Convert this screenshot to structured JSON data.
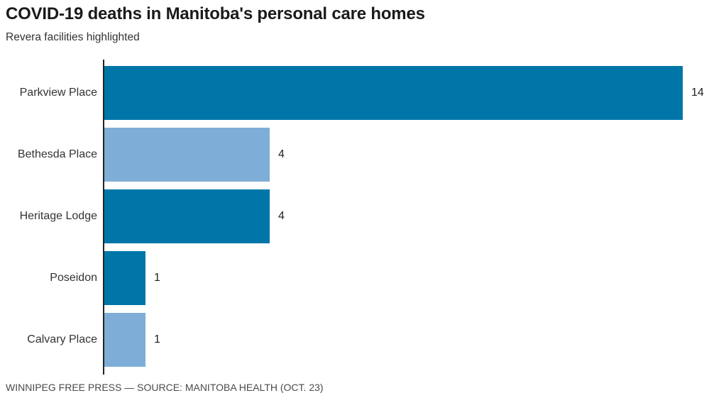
{
  "header": {
    "title": "COVID-19 deaths in Manitoba's personal care homes",
    "subtitle": "Revera facilities highlighted"
  },
  "footer": {
    "source_line": "WINNIPEG FREE PRESS — SOURCE: MANITOBA HEALTH (OCT. 23)"
  },
  "chart_data": {
    "type": "bar",
    "orientation": "horizontal",
    "title": "COVID-19 deaths in Manitoba's personal care homes",
    "subtitle": "Revera facilities highlighted",
    "categories": [
      "Parkview Place",
      "Bethesda Place",
      "Heritage Lodge",
      "Poseidon",
      "Calvary Place"
    ],
    "values": [
      14,
      4,
      4,
      1,
      1
    ],
    "bars": [
      {
        "label": "Parkview Place",
        "value": 14,
        "value_label": "14",
        "color": "#0076a8"
      },
      {
        "label": "Bethesda Place",
        "value": 4,
        "value_label": "4",
        "color": "#7eaed7"
      },
      {
        "label": "Heritage Lodge",
        "value": 4,
        "value_label": "4",
        "color": "#0076a8"
      },
      {
        "label": "Poseidon",
        "value": 1,
        "value_label": "1",
        "color": "#0076a8"
      },
      {
        "label": "Calvary Place",
        "value": 1,
        "value_label": "1",
        "color": "#7eaed7"
      }
    ],
    "xlim": [
      0,
      14
    ],
    "grid": false,
    "legend": "none",
    "colors": {
      "dark_blue": "#0076a8",
      "light_blue": "#7eaed7",
      "axis": "#222222"
    },
    "value_label_position": "outside-end"
  }
}
